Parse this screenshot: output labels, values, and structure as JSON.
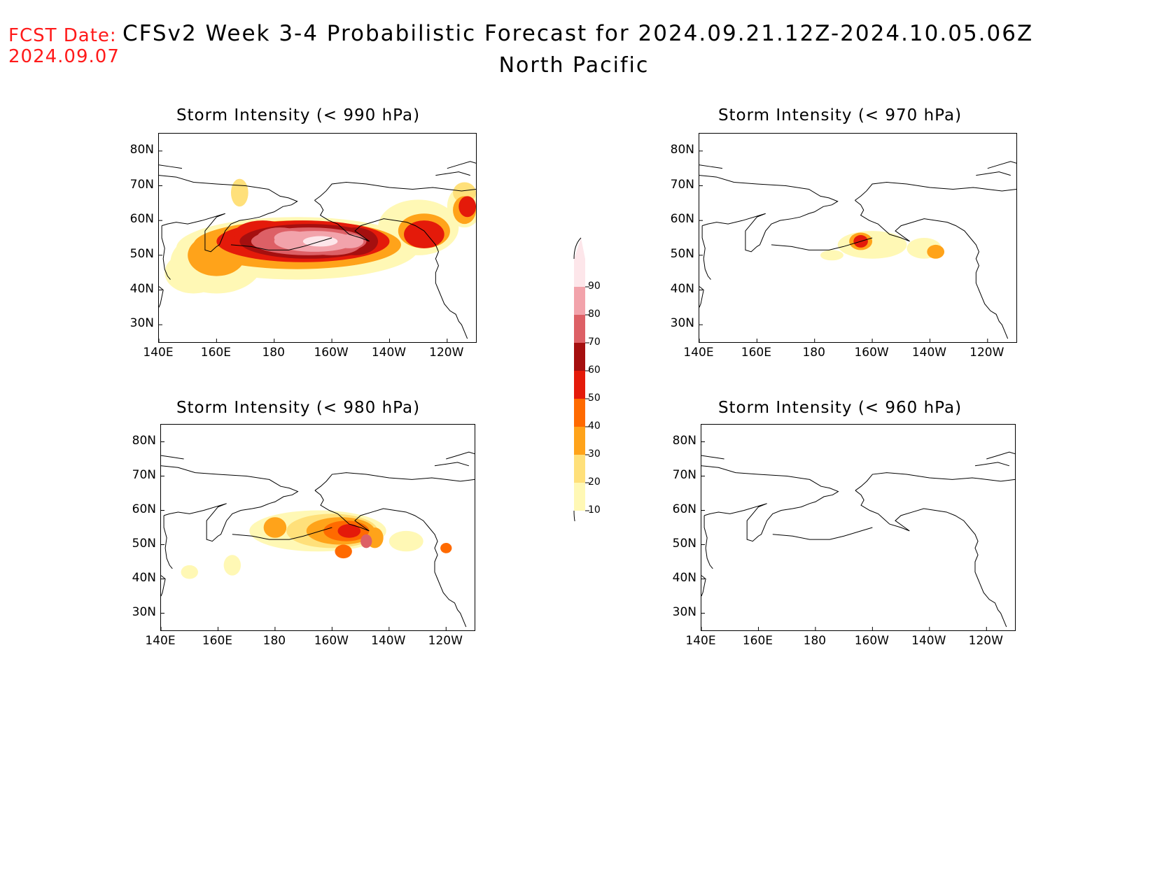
{
  "header": {
    "fcst_label": "FCST Date:",
    "fcst_date": "2024.09.07",
    "title": "CFSv2 Week 3-4 Probabilistic Forecast for 2024.09.21.12Z-2024.10.05.06Z",
    "subtitle": "North Pacific"
  },
  "axes": {
    "lat_labels": [
      "80N",
      "70N",
      "60N",
      "50N",
      "40N",
      "30N"
    ],
    "lon_labels": [
      "140E",
      "160E",
      "180",
      "160W",
      "140W",
      "120W"
    ]
  },
  "panels": [
    {
      "title": "Storm Intensity (< 990 hPa)"
    },
    {
      "title": "Storm Intensity (< 970 hPa)"
    },
    {
      "title": "Storm Intensity (< 980 hPa)"
    },
    {
      "title": "Storm Intensity (< 960 hPa)"
    }
  ],
  "colorbar": {
    "levels": [
      "90",
      "80",
      "70",
      "60",
      "50",
      "40",
      "30",
      "20",
      "10"
    ],
    "colors": [
      "#fde6ea",
      "#f2a3ab",
      "#dd6066",
      "#a50f0f",
      "#e41a0a",
      "#ff6a00",
      "#ffa31a",
      "#ffe07a",
      "#fff8b5"
    ]
  },
  "colors": {
    "fcst_label": "#ff1a1a",
    "text": "#000000"
  }
}
